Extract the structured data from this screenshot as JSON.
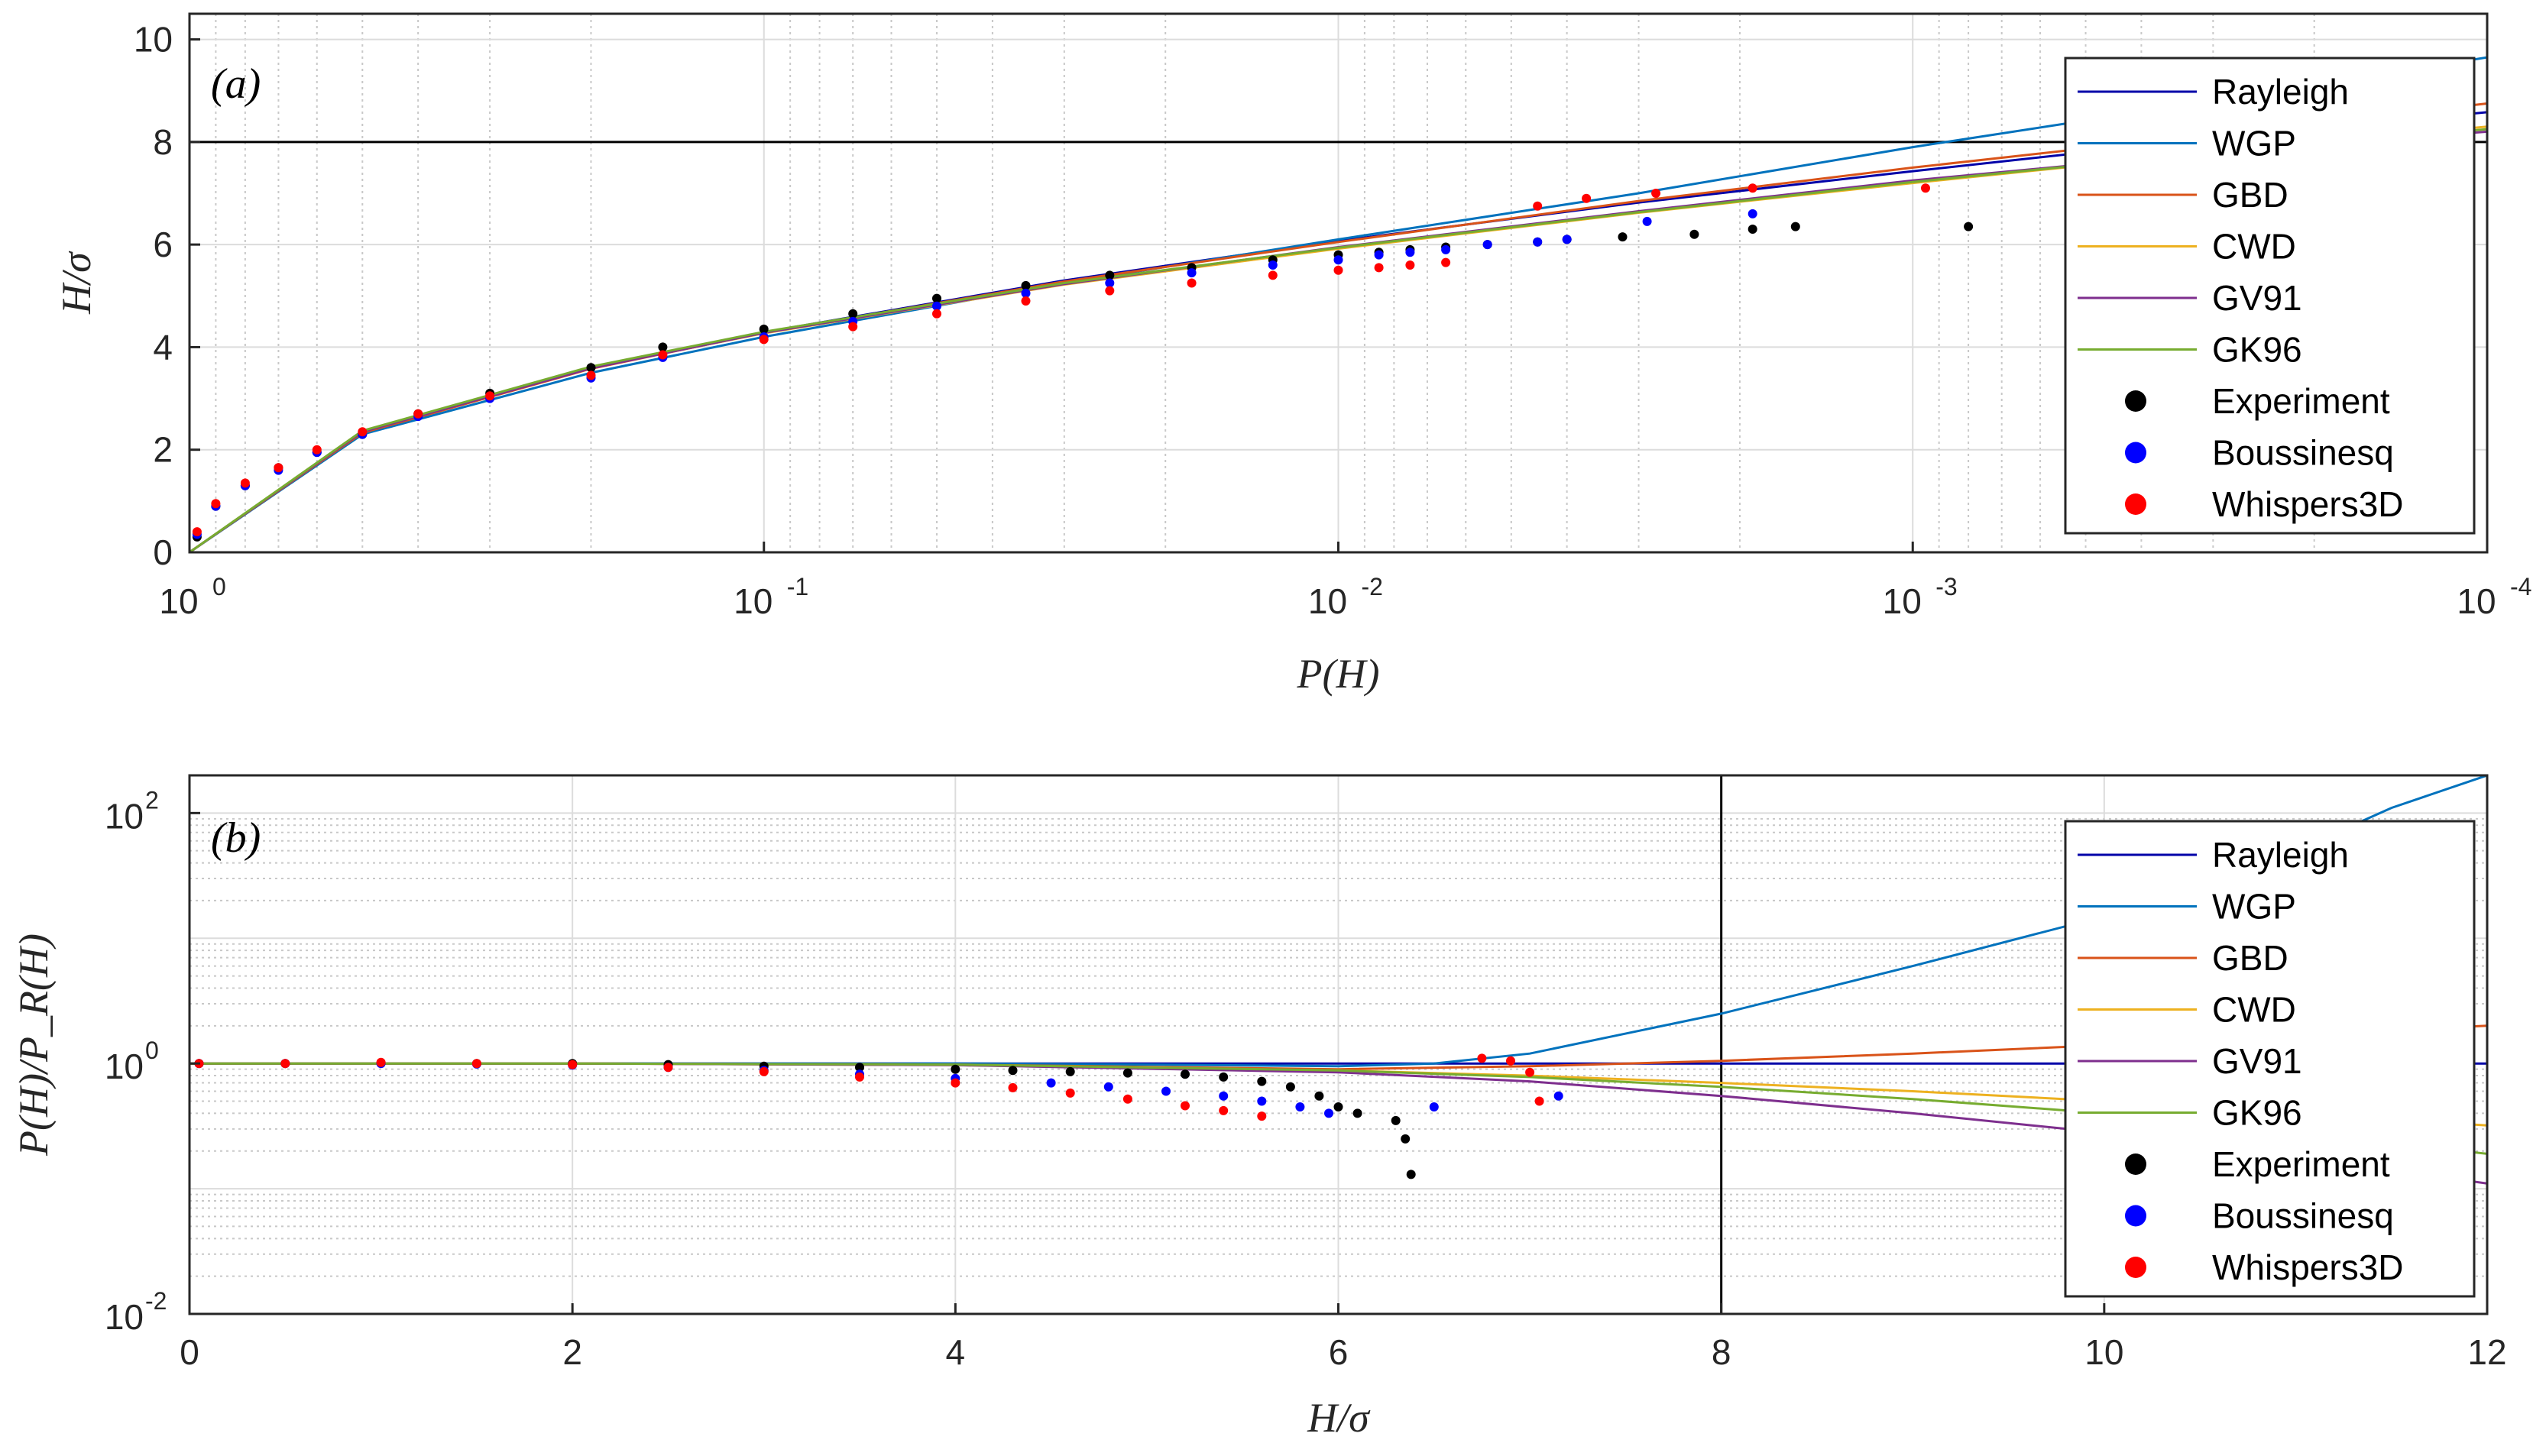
{
  "colors": {
    "Rayleigh": "#0000a8",
    "WGP": "#0072bd",
    "GBD": "#d95319",
    "CWD": "#edb120",
    "GV91": "#7e2f8e",
    "GK96": "#77ac30",
    "Experiment": "#000000",
    "Boussinesq": "#0000ff",
    "Whispers3D": "#ff0000"
  },
  "chart_data": [
    {
      "type": "line",
      "panel_label": "(a)",
      "xlabel": "P(H)",
      "ylabel": "H/σ",
      "xscale": "log",
      "xdirection": "reverse",
      "xlim": [
        1,
        0.0001
      ],
      "ylim": [
        0,
        10.5
      ],
      "x_ticks": [
        {
          "base": "10",
          "exp": "0",
          "value": 1,
          "label": "10^0"
        },
        {
          "base": "10",
          "exp": "-1",
          "value": 0.1,
          "label": "10^-1"
        },
        {
          "base": "10",
          "exp": "-2",
          "value": 0.01,
          "label": "10^-2"
        },
        {
          "base": "10",
          "exp": "-3",
          "value": 0.001,
          "label": "10^-3"
        },
        {
          "base": "10",
          "exp": "-4",
          "value": 0.0001,
          "label": "10^-4"
        }
      ],
      "y_ticks": [
        "0",
        "2",
        "4",
        "6",
        "8",
        "10"
      ],
      "grid": true,
      "reference_line": {
        "axis": "y",
        "value": 8
      },
      "legend_position": "top-right",
      "series": [
        {
          "name": "Rayleigh",
          "kind": "line",
          "x": [
            1,
            0.5,
            0.2,
            0.1,
            0.03,
            0.01,
            0.003,
            0.001,
            0.0003,
            0.0001
          ],
          "y": [
            0.0,
            2.35,
            3.59,
            4.29,
            5.3,
            6.07,
            6.82,
            7.43,
            8.07,
            8.58
          ]
        },
        {
          "name": "WGP",
          "kind": "line",
          "x": [
            1,
            0.5,
            0.2,
            0.1,
            0.03,
            0.01,
            0.003,
            0.001,
            0.0003,
            0.0001
          ],
          "y": [
            0.0,
            2.3,
            3.5,
            4.2,
            5.25,
            6.1,
            7.0,
            7.9,
            8.8,
            9.65
          ]
        },
        {
          "name": "GBD",
          "kind": "line",
          "x": [
            1,
            0.5,
            0.2,
            0.1,
            0.03,
            0.01,
            0.003,
            0.001,
            0.0003,
            0.0001
          ],
          "y": [
            0.0,
            2.33,
            3.58,
            4.28,
            5.28,
            6.05,
            6.85,
            7.5,
            8.15,
            8.75
          ]
        },
        {
          "name": "CWD",
          "kind": "line",
          "x": [
            1,
            0.5,
            0.2,
            0.1,
            0.03,
            0.01,
            0.003,
            0.001,
            0.0003,
            0.0001
          ],
          "y": [
            0.0,
            2.36,
            3.6,
            4.27,
            5.22,
            5.92,
            6.62,
            7.2,
            7.8,
            8.3
          ]
        },
        {
          "name": "GV91",
          "kind": "line",
          "x": [
            1,
            0.5,
            0.2,
            0.1,
            0.03,
            0.01,
            0.003,
            0.001,
            0.0003,
            0.0001
          ],
          "y": [
            0.0,
            2.35,
            3.59,
            4.28,
            5.23,
            5.95,
            6.65,
            7.25,
            7.8,
            8.2
          ]
        },
        {
          "name": "GK96",
          "kind": "line",
          "x": [
            1,
            0.5,
            0.2,
            0.1,
            0.03,
            0.01,
            0.003,
            0.001,
            0.0003,
            0.0001
          ],
          "y": [
            0.0,
            2.37,
            3.62,
            4.3,
            5.25,
            5.94,
            6.63,
            7.22,
            7.8,
            8.25
          ]
        },
        {
          "name": "Experiment",
          "kind": "scatter",
          "x": [
            0.97,
            0.9,
            0.8,
            0.7,
            0.6,
            0.5,
            0.4,
            0.3,
            0.2,
            0.15,
            0.1,
            0.07,
            0.05,
            0.035,
            0.025,
            0.018,
            0.013,
            0.01,
            0.0085,
            0.0075,
            0.0065,
            0.0055,
            0.0045,
            0.004,
            0.0032,
            0.0024,
            0.0019,
            0.0016,
            0.0008
          ],
          "y": [
            0.3,
            0.9,
            1.3,
            1.65,
            1.95,
            2.3,
            2.7,
            3.1,
            3.6,
            4.0,
            4.35,
            4.65,
            4.95,
            5.2,
            5.4,
            5.55,
            5.7,
            5.8,
            5.85,
            5.9,
            5.95,
            6.0,
            6.05,
            6.1,
            6.15,
            6.2,
            6.3,
            6.35,
            6.35
          ]
        },
        {
          "name": "Boussinesq",
          "kind": "scatter",
          "x": [
            0.97,
            0.9,
            0.8,
            0.7,
            0.6,
            0.5,
            0.4,
            0.3,
            0.2,
            0.15,
            0.1,
            0.07,
            0.05,
            0.035,
            0.025,
            0.018,
            0.013,
            0.01,
            0.0085,
            0.0075,
            0.0065,
            0.0055,
            0.0045,
            0.004,
            0.0029,
            0.0019
          ],
          "y": [
            0.35,
            0.9,
            1.3,
            1.6,
            1.95,
            2.3,
            2.65,
            3.0,
            3.4,
            3.8,
            4.2,
            4.5,
            4.8,
            5.05,
            5.25,
            5.45,
            5.6,
            5.7,
            5.8,
            5.85,
            5.9,
            6.0,
            6.05,
            6.1,
            6.45,
            6.6
          ]
        },
        {
          "name": "Whispers3D",
          "kind": "scatter",
          "x": [
            0.97,
            0.9,
            0.8,
            0.7,
            0.6,
            0.5,
            0.4,
            0.3,
            0.2,
            0.15,
            0.1,
            0.07,
            0.05,
            0.035,
            0.025,
            0.018,
            0.013,
            0.01,
            0.0085,
            0.0075,
            0.0065,
            0.0045,
            0.0037,
            0.0028,
            0.0019,
            0.00095
          ],
          "y": [
            0.4,
            0.95,
            1.35,
            1.65,
            2.0,
            2.35,
            2.7,
            3.05,
            3.45,
            3.85,
            4.15,
            4.4,
            4.65,
            4.9,
            5.1,
            5.25,
            5.4,
            5.5,
            5.55,
            5.6,
            5.65,
            6.75,
            6.9,
            7.0,
            7.1,
            7.1
          ]
        }
      ]
    },
    {
      "type": "line",
      "panel_label": "(b)",
      "xlabel": "H/σ",
      "ylabel": "P(H)/P_R(H)",
      "yscale": "log",
      "xlim": [
        0,
        12
      ],
      "ylim": [
        0.01,
        200
      ],
      "x_ticks": [
        "0",
        "2",
        "4",
        "6",
        "8",
        "10",
        "12"
      ],
      "y_ticks": [
        {
          "base": "10",
          "exp": "2",
          "value": 100,
          "label": "10^2"
        },
        {
          "base": "10",
          "exp": "0",
          "value": 1,
          "label": "10^0"
        },
        {
          "base": "10",
          "exp": "-2",
          "value": 0.01,
          "label": "10^-2"
        }
      ],
      "grid": true,
      "reference_line": {
        "axis": "x",
        "value": 8
      },
      "legend_position": "top-right",
      "series": [
        {
          "name": "Rayleigh",
          "kind": "line",
          "x": [
            0,
            2,
            4,
            6,
            8,
            10,
            12
          ],
          "y": [
            1,
            1,
            1,
            1,
            1,
            1,
            1
          ]
        },
        {
          "name": "WGP",
          "kind": "line",
          "x": [
            0,
            2,
            4,
            5,
            6,
            6.5,
            7,
            8,
            9,
            10,
            11,
            11.5,
            12
          ],
          "y": [
            1,
            1,
            1,
            0.98,
            0.95,
            1.0,
            1.2,
            2.5,
            6,
            15,
            50,
            110,
            200
          ]
        },
        {
          "name": "GBD",
          "kind": "line",
          "x": [
            0,
            2,
            4,
            6,
            7,
            8,
            9,
            10,
            11,
            12
          ],
          "y": [
            1,
            1,
            0.98,
            0.9,
            0.95,
            1.05,
            1.2,
            1.4,
            1.7,
            2.0
          ]
        },
        {
          "name": "CWD",
          "kind": "line",
          "x": [
            0,
            2,
            4,
            6,
            7,
            8,
            9,
            10,
            11,
            12
          ],
          "y": [
            1,
            1,
            0.97,
            0.88,
            0.8,
            0.7,
            0.6,
            0.5,
            0.4,
            0.32
          ]
        },
        {
          "name": "GV91",
          "kind": "line",
          "x": [
            0,
            2,
            4,
            6,
            7,
            8,
            9,
            10,
            11,
            12
          ],
          "y": [
            1,
            1,
            0.97,
            0.85,
            0.72,
            0.55,
            0.4,
            0.28,
            0.18,
            0.11
          ]
        },
        {
          "name": "GK96",
          "kind": "line",
          "x": [
            0,
            2,
            4,
            6,
            7,
            8,
            9,
            10,
            11,
            12
          ],
          "y": [
            1,
            1,
            0.98,
            0.88,
            0.78,
            0.65,
            0.52,
            0.4,
            0.28,
            0.19
          ]
        },
        {
          "name": "Experiment",
          "kind": "scatter",
          "x": [
            0.05,
            0.5,
            1.0,
            1.5,
            2.0,
            2.5,
            3.0,
            3.5,
            4.0,
            4.3,
            4.6,
            4.9,
            5.2,
            5.4,
            5.6,
            5.75,
            5.9,
            6.0,
            6.1,
            6.3,
            6.35,
            6.38
          ],
          "y": [
            1.0,
            1.0,
            1.01,
            1.0,
            1.0,
            0.98,
            0.95,
            0.93,
            0.9,
            0.88,
            0.86,
            0.84,
            0.82,
            0.78,
            0.72,
            0.65,
            0.55,
            0.45,
            0.4,
            0.35,
            0.25,
            0.13
          ]
        },
        {
          "name": "Boussinesq",
          "kind": "scatter",
          "x": [
            0.05,
            0.5,
            1.0,
            1.5,
            2.0,
            2.5,
            3.0,
            3.5,
            4.0,
            4.5,
            4.8,
            5.1,
            5.4,
            5.6,
            5.8,
            5.95,
            6.5,
            7.15
          ],
          "y": [
            1.0,
            1.0,
            1.0,
            0.99,
            0.97,
            0.93,
            0.88,
            0.82,
            0.76,
            0.7,
            0.65,
            0.6,
            0.55,
            0.5,
            0.45,
            0.4,
            0.45,
            0.55
          ]
        },
        {
          "name": "Whispers3D",
          "kind": "scatter",
          "x": [
            0.05,
            0.5,
            1.0,
            1.5,
            2.0,
            2.5,
            3.0,
            3.5,
            4.0,
            4.3,
            4.6,
            4.9,
            5.2,
            5.4,
            5.6,
            6.75,
            6.9,
            7.0,
            7.05
          ],
          "y": [
            1.0,
            1.0,
            1.02,
            1.0,
            0.98,
            0.93,
            0.86,
            0.78,
            0.7,
            0.64,
            0.58,
            0.52,
            0.46,
            0.42,
            0.38,
            1.1,
            1.05,
            0.85,
            0.5
          ]
        }
      ]
    }
  ]
}
